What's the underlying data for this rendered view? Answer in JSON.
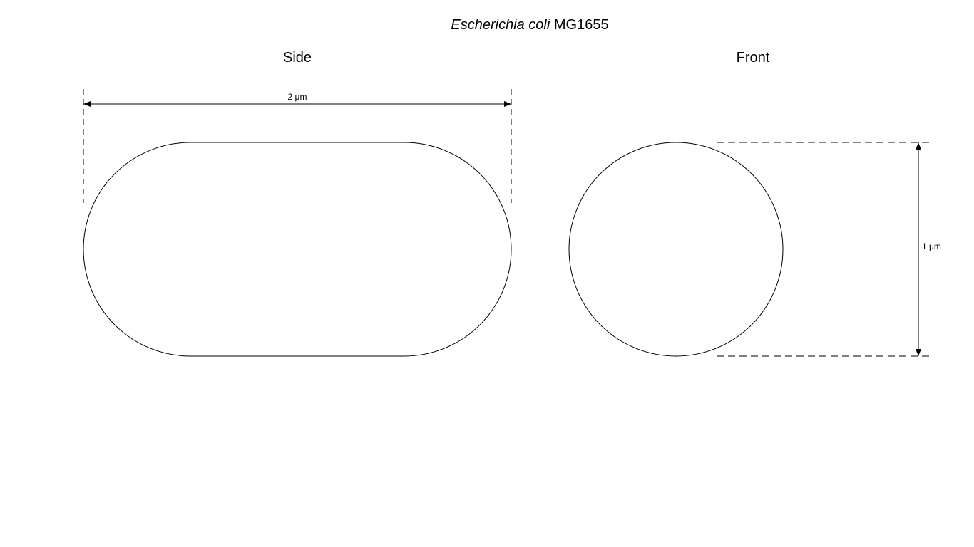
{
  "title": {
    "species": "Escherichia coli",
    "strain": "MG1655"
  },
  "views": {
    "side": {
      "label": "Side",
      "dimension_label": "2 μm"
    },
    "front": {
      "label": "Front",
      "dimension_label": "1 μm"
    }
  },
  "colors": {
    "stroke": "#000000",
    "background": "#ffffff"
  }
}
